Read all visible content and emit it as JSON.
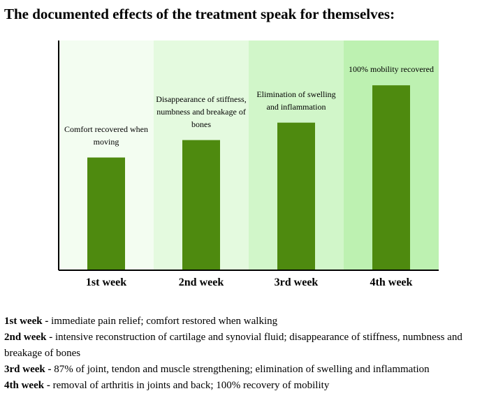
{
  "title": "The documented effects of the treatment speak for themselves:",
  "chart_data": {
    "type": "bar",
    "categories": [
      "1st week",
      "2nd week",
      "3rd week",
      "4th week"
    ],
    "values": [
      45,
      52,
      59,
      74
    ],
    "annotations": [
      "Comfort recovered when moving",
      "Disappearance of stiffness, numbness and breakage of bones",
      "Elimination of swelling and inflammation",
      "100% mobility recovered"
    ],
    "ylim": [
      0,
      92
    ],
    "grid": false,
    "bar_color": "#4e8a0f",
    "band_colors": [
      "#f3fdf1",
      "#e4fadf",
      "#d1f6c9",
      "#bdf1b1"
    ],
    "axis_color": "#000000"
  },
  "legend": [
    {
      "week": "1st week",
      "sep": " - ",
      "text": "immediate pain relief; comfort restored when walking"
    },
    {
      "week": "2nd week",
      "sep": " - ",
      "text": "intensive reconstruction of cartilage and synovial fluid; disappearance of stiffness, numbness and breakage of bones"
    },
    {
      "week": "3rd week",
      "sep": " - ",
      "text": "87% of joint, tendon and muscle strengthening; elimination of swelling and inflammation"
    },
    {
      "week": "4th week",
      "sep": " - ",
      "text": "removal of arthritis in joints and back; 100% recovery of mobility"
    }
  ]
}
